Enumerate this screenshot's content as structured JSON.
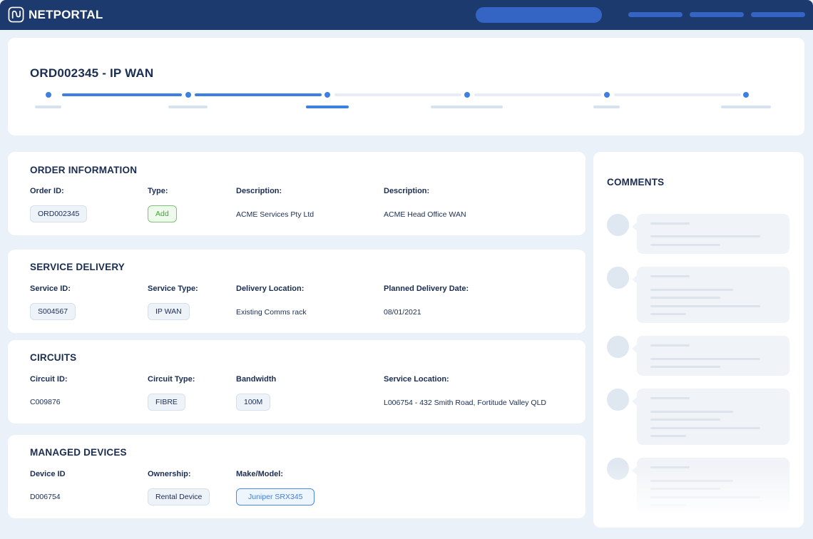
{
  "app": {
    "brand": "NETPORTAL"
  },
  "order": {
    "title": "ORD002345 - IP WAN"
  },
  "progress": {
    "total_steps": 6,
    "completed_steps": 2,
    "current_step": 3
  },
  "order_info": {
    "title": "ORDER INFORMATION",
    "labels": {
      "order_id": "Order ID:",
      "type": "Type:",
      "description1": "Description:",
      "description2": "Description:"
    },
    "values": {
      "order_id": "ORD002345",
      "type": "Add",
      "description1": "ACME Services Pty Ltd",
      "description2": "ACME Head Office WAN"
    }
  },
  "service_delivery": {
    "title": "SERVICE DELIVERY",
    "labels": {
      "service_id": "Service ID:",
      "service_type": "Service Type:",
      "location": "Delivery Location:",
      "date": "Planned Delivery Date:"
    },
    "values": {
      "service_id": "S004567",
      "service_type": "IP WAN",
      "location": "Existing Comms rack",
      "date": "08/01/2021"
    }
  },
  "circuits": {
    "title": "CIRCUITS",
    "labels": {
      "circuit_id": "Circuit ID:",
      "circuit_type": "Circuit Type:",
      "bandwidth": "Bandwidth",
      "location": "Service Location:"
    },
    "values": {
      "circuit_id": "C009876",
      "circuit_type": "FIBRE",
      "bandwidth": "100M",
      "location": "L006754 - 432 Smith Road, Fortitude Valley QLD"
    }
  },
  "managed_devices": {
    "title": "MANAGED DEVICES",
    "labels": {
      "device_id": "Device ID",
      "ownership": "Ownership:",
      "make_model": "Make/Model:"
    },
    "values": {
      "device_id": "D006754",
      "ownership": "Rental Device",
      "make_model": "Juniper SRX345"
    }
  },
  "comments": {
    "title": "COMMENTS"
  },
  "icons": {
    "logo": "netportal-logo-icon"
  },
  "colors": {
    "header": "#1c3a6e",
    "accent": "#3d7fe3",
    "success": "#43a638",
    "page_bg": "#eaf1f9"
  }
}
